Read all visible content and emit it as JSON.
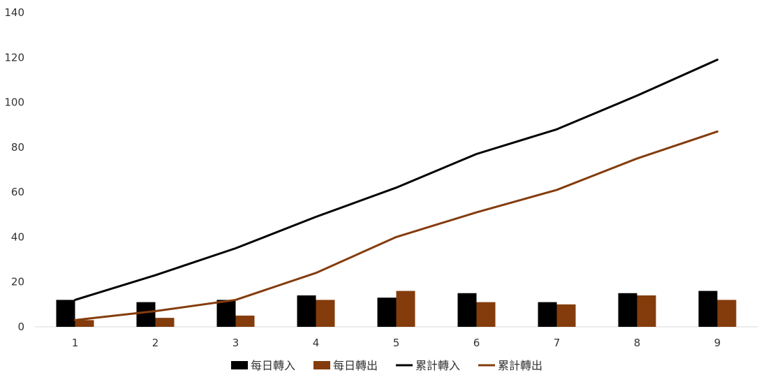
{
  "chart_data": {
    "type": "bar",
    "categories": [
      "1",
      "2",
      "3",
      "4",
      "5",
      "6",
      "7",
      "8",
      "9"
    ],
    "series": [
      {
        "name": "每日轉入",
        "kind": "bar",
        "color": "#000000",
        "values": [
          12,
          11,
          12,
          14,
          13,
          15,
          11,
          15,
          16
        ]
      },
      {
        "name": "每日轉出",
        "kind": "bar",
        "color": "#843C0C",
        "values": [
          3,
          4,
          5,
          12,
          16,
          11,
          10,
          14,
          12
        ]
      },
      {
        "name": "累計轉入",
        "kind": "line",
        "color": "#000000",
        "values": [
          12,
          23,
          35,
          49,
          62,
          77,
          88,
          103,
          119
        ]
      },
      {
        "name": "累計轉出",
        "kind": "line",
        "color": "#843C0C",
        "values": [
          3,
          7,
          12,
          24,
          40,
          51,
          61,
          75,
          87
        ]
      }
    ],
    "y_ticks": [
      "0",
      "20",
      "40",
      "60",
      "80",
      "100",
      "120",
      "140"
    ],
    "ylim": [
      0,
      140
    ],
    "grid": false,
    "legend_position": "bottom"
  }
}
